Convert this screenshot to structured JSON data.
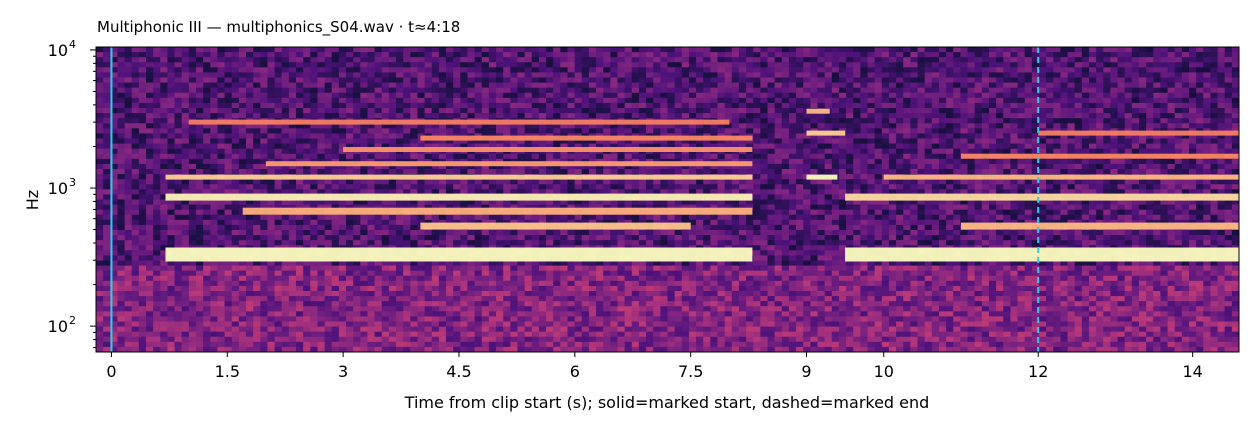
{
  "chart_data": {
    "type": "heatmap",
    "title": "Multiphonic III  —  multiphonics_S04.wav · t≈4:18",
    "xlabel": "Time from clip start (s); solid=marked start, dashed=marked end",
    "ylabel": "Hz",
    "x_scale": "linear",
    "y_scale": "log",
    "xlim": [
      -0.2,
      14.6
    ],
    "ylim": [
      65,
      10500
    ],
    "x_ticks": [
      0,
      1.5,
      3,
      4.5,
      6,
      7.5,
      9,
      10,
      12,
      14
    ],
    "x_tick_labels": [
      "0",
      "1.5",
      "3",
      "4.5",
      "6",
      "7.5",
      "9",
      "10",
      "12",
      "14"
    ],
    "y_ticks": [
      100,
      1000,
      10000
    ],
    "y_tick_labels": [
      "10",
      "10",
      "10"
    ],
    "y_tick_exponents": [
      "2",
      "3",
      "4"
    ],
    "colormap": "magma",
    "markers": [
      {
        "x": 0,
        "style": "solid",
        "color": "#22d3ee"
      },
      {
        "x": 12,
        "style": "dashed",
        "color": "#22d3ee"
      }
    ],
    "partials_hz": [
      {
        "hz": 330,
        "start": 0.7,
        "end": 8.3,
        "level": 1.0
      },
      {
        "hz": 330,
        "start": 9.5,
        "end": 14.6,
        "level": 1.0
      },
      {
        "hz": 860,
        "start": 0.7,
        "end": 8.3,
        "level": 0.95
      },
      {
        "hz": 860,
        "start": 9.5,
        "end": 14.6,
        "level": 0.85
      },
      {
        "hz": 1200,
        "start": 0.7,
        "end": 8.3,
        "level": 0.8
      },
      {
        "hz": 1200,
        "start": 9.0,
        "end": 9.4,
        "level": 1.0
      },
      {
        "hz": 1200,
        "start": 10.0,
        "end": 14.6,
        "level": 0.7
      },
      {
        "hz": 530,
        "start": 4.0,
        "end": 7.5,
        "level": 0.75
      },
      {
        "hz": 530,
        "start": 11.0,
        "end": 14.6,
        "level": 0.7
      },
      {
        "hz": 680,
        "start": 1.7,
        "end": 8.3,
        "level": 0.65
      },
      {
        "hz": 1500,
        "start": 2.0,
        "end": 8.3,
        "level": 0.55
      },
      {
        "hz": 1900,
        "start": 3.0,
        "end": 8.3,
        "level": 0.5
      },
      {
        "hz": 2300,
        "start": 4.0,
        "end": 8.3,
        "level": 0.45
      },
      {
        "hz": 2500,
        "start": 9.0,
        "end": 9.5,
        "level": 0.8
      },
      {
        "hz": 3000,
        "start": 1.0,
        "end": 8.0,
        "level": 0.4
      },
      {
        "hz": 3600,
        "start": 9.0,
        "end": 9.3,
        "level": 0.7
      },
      {
        "hz": 1700,
        "start": 11.0,
        "end": 14.6,
        "level": 0.45
      },
      {
        "hz": 2500,
        "start": 12.0,
        "end": 14.6,
        "level": 0.4
      }
    ]
  }
}
